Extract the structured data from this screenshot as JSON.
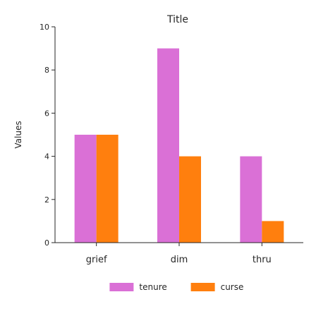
{
  "chart_data": {
    "type": "bar",
    "title": "Title",
    "xlabel": "",
    "ylabel": "Values",
    "categories": [
      "grief",
      "dim",
      "thru"
    ],
    "series": [
      {
        "name": "tenure",
        "values": [
          5,
          9,
          4
        ],
        "color": "#da70d6"
      },
      {
        "name": "curse",
        "values": [
          5,
          4,
          1
        ],
        "color": "#ff7f0e"
      }
    ],
    "ylim": [
      0,
      10
    ],
    "yticks": [
      0,
      2,
      4,
      6,
      8,
      10
    ],
    "grid": false,
    "legend_position": "bottom-center"
  }
}
